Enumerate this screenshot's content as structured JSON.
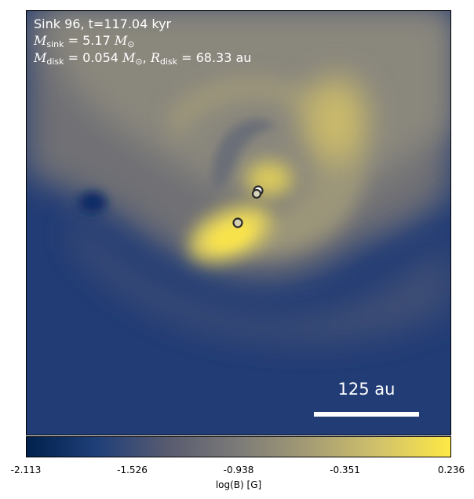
{
  "image": {
    "description_free": true,
    "colormap": "cividis",
    "colormap_stops": [
      "#00204c",
      "#1f3f79",
      "#585b70",
      "#7c7b78",
      "#a59c74",
      "#d2c36a",
      "#ffe945"
    ]
  },
  "annotation": {
    "line1": "Sink 96, t=117.04 kyr",
    "mass_symbol": "M",
    "mass_sub": "sink",
    "mass_value": "= 5.17",
    "mass_unit": "M",
    "mass_unit_sub": "⊙",
    "disk_symbol": "M",
    "disk_sub": "disk",
    "disk_value": "= 0.054",
    "disk_unit": "M",
    "disk_unit_sub": "⊙",
    "radius_symbol": "R",
    "radius_sub": "disk",
    "radius_value": "= 68.33 au"
  },
  "scale_bar": {
    "label": "125 au"
  },
  "colorbar": {
    "label": "log(B) [G]",
    "ticks": [
      "-2.113",
      "-1.526",
      "-0.938",
      "-0.351",
      "0.236"
    ],
    "min": -2.113,
    "max": 0.236
  },
  "sinks": {
    "count": 3
  }
}
